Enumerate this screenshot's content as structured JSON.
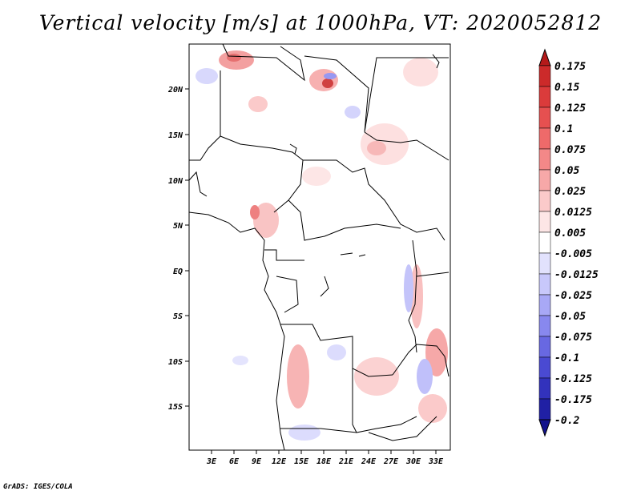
{
  "title": "Vertical velocity [m/s] at 1000hPa, VT: 2020052812",
  "credit": "GrADS: IGES/COLA",
  "map": {
    "lon_ticks": [
      "3E",
      "6E",
      "9E",
      "12E",
      "15E",
      "18E",
      "21E",
      "24E",
      "27E",
      "30E",
      "33E"
    ],
    "lat_ticks": [
      "20N",
      "15N",
      "10N",
      "5N",
      "EQ",
      "5S",
      "10S",
      "15S"
    ]
  },
  "colorbar": {
    "levels": [
      "0.175",
      "0.15",
      "0.125",
      "0.1",
      "0.075",
      "0.05",
      "0.025",
      "0.0125",
      "0.005",
      "-0.005",
      "-0.0125",
      "-0.025",
      "-0.05",
      "-0.075",
      "-0.1",
      "-0.125",
      "-0.175",
      "-0.2"
    ],
    "colors": [
      "#b41a1a",
      "#cc2a2a",
      "#db3b3b",
      "#e65050",
      "#ee6a6a",
      "#f38888",
      "#f7a8a8",
      "#fbcaca",
      "#fde6e6",
      "#ffffff",
      "#e2e2fd",
      "#c8c8fb",
      "#a8a8f6",
      "#8888ee",
      "#6868e2",
      "#4a4ad2",
      "#3232bc",
      "#2020a4",
      "#12128c"
    ]
  }
}
